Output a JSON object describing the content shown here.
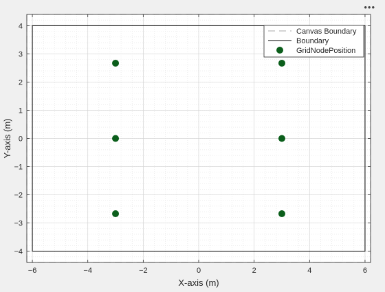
{
  "toolbar": {
    "menu_glyph": "•••",
    "menu_icon": "ellipsis-icon"
  },
  "chart_data": {
    "type": "scatter",
    "title": "",
    "xlabel": "X-axis (m)",
    "ylabel": "Y-axis (m)",
    "xlim": [
      -6.2,
      6.2
    ],
    "ylim": [
      -4.4,
      4.4
    ],
    "xticks": [
      -6,
      -4,
      -2,
      0,
      2,
      4,
      6
    ],
    "yticks": [
      -4,
      -3,
      -2,
      -1,
      0,
      1,
      2,
      3,
      4
    ],
    "grid": true,
    "minor_grid": true,
    "legend_position": "top-right",
    "series": [
      {
        "name": "Canvas Boundary",
        "kind": "line",
        "style": "dashed",
        "color": "#aaaaaa",
        "x": [
          -6.2,
          6.2,
          6.2,
          -6.2,
          -6.2
        ],
        "y": [
          -4.4,
          -4.4,
          4.4,
          4.4,
          -4.4
        ]
      },
      {
        "name": "Boundary",
        "kind": "line",
        "style": "solid",
        "color": "#000000",
        "x": [
          -6,
          6,
          6,
          -6,
          -6
        ],
        "y": [
          -4,
          -4,
          4,
          4,
          -4
        ]
      },
      {
        "name": "GridNodePosition",
        "kind": "scatter",
        "color": "#0b5e1b",
        "points": [
          {
            "x": -3,
            "y": 2.67
          },
          {
            "x": 3,
            "y": 2.67
          },
          {
            "x": -3,
            "y": 0
          },
          {
            "x": 3,
            "y": 0
          },
          {
            "x": -3,
            "y": -2.67
          },
          {
            "x": 3,
            "y": -2.67
          }
        ]
      }
    ]
  }
}
